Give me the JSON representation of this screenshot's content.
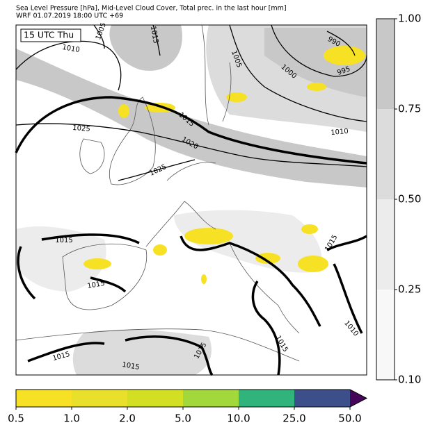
{
  "header": {
    "line1": "Sea Level Pressure [hPa], Mid-Level Cloud Cover, Total prec. in the last hour [mm]",
    "line2": "WRF 01.07.2019 18:00 UTC +69"
  },
  "time_label": "15 UTC Thu",
  "contour_labels": [
    1005,
    1015,
    1010,
    1005,
    990,
    995,
    1000,
    1015,
    1025,
    1010,
    1020,
    1025,
    1015,
    1015,
    1015,
    1010,
    1015,
    1015,
    1015,
    1015
  ],
  "cloud_colorbar": {
    "ticks": [
      "1.00",
      "0.75",
      "0.50",
      "0.25",
      "0.10"
    ],
    "colors": [
      "#c8c8c8",
      "#dcdcdc",
      "#ececec",
      "#f8f8f8"
    ]
  },
  "precip_colorbar": {
    "ticks": [
      "0.5",
      "1.0",
      "2.0",
      "5.0",
      "10.0",
      "25.0",
      "50.0"
    ],
    "colors": [
      "#f6e125",
      "#e8e02a",
      "#d3df22",
      "#a3d83c",
      "#30b47c",
      "#3c4f8a",
      "#45065a"
    ]
  }
}
